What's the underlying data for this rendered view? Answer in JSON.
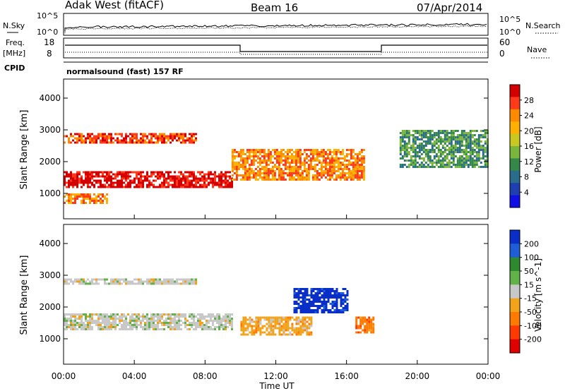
{
  "header": {
    "site": "Adak West (fitACF)",
    "beam": "Beam 16",
    "date": "07/Apr/2014"
  },
  "labels": {
    "nsky": "N.Sky",
    "nsearch": "N.Search",
    "freq_line1": "Freq.",
    "freq_line2": "[MHz]",
    "nave": "Nave",
    "cpid": "CPID",
    "cpid_text": "normalsound (fast) 157 RF",
    "time_axis": "Time UT"
  },
  "noise_axis": {
    "left_top": "10^5",
    "left_bottom": "10^0",
    "right_top": "10^5",
    "right_bottom": "10^0"
  },
  "freq_axis": {
    "left_ticks": [
      "18",
      "8"
    ],
    "right_ticks": [
      "60",
      "0"
    ]
  },
  "time_ticks": [
    "00:00",
    "04:00",
    "08:00",
    "12:00",
    "16:00",
    "20:00",
    "00:00"
  ],
  "chart_data": [
    {
      "type": "heatmap",
      "name": "power",
      "ylabel": "Slant Range [km]",
      "xlabel": "Time UT",
      "xlim_hours": [
        0,
        24
      ],
      "ylim": [
        200,
        4600
      ],
      "yticks": [
        1000,
        2000,
        3000,
        4000
      ],
      "colorbar": {
        "label": "Power [dB]",
        "ticks": [
          "28",
          "24",
          "20",
          "16",
          "12",
          "8",
          "4"
        ],
        "colors": [
          "#d40000",
          "#ff3a1a",
          "#ff8a00",
          "#ffb000",
          "#c8c820",
          "#7ab63c",
          "#33884a",
          "#2a6c8c",
          "#1f3fb0",
          "#1010e6"
        ]
      },
      "bands": [
        {
          "range_km": [
            1200,
            1700
          ],
          "hours": [
            0,
            9.5
          ],
          "peak_db": 28
        },
        {
          "range_km": [
            2600,
            2900
          ],
          "hours": [
            0,
            7.5
          ],
          "peak_db": 24
        },
        {
          "range_km": [
            700,
            1000
          ],
          "hours": [
            0,
            2.5
          ],
          "peak_db": 22
        },
        {
          "range_km": [
            1400,
            2400
          ],
          "hours": [
            9.5,
            17
          ],
          "peak_db": 22
        },
        {
          "range_km": [
            1800,
            3000
          ],
          "hours": [
            19,
            24
          ],
          "peak_db": 10
        }
      ]
    },
    {
      "type": "heatmap",
      "name": "velocity",
      "ylabel": "Slant Range [km]",
      "xlabel": "Time UT",
      "xlim_hours": [
        0,
        24
      ],
      "ylim": [
        200,
        4600
      ],
      "yticks": [
        1000,
        2000,
        3000,
        4000
      ],
      "colorbar": {
        "label": "Velocity [m s^-1]",
        "ticks": [
          "200",
          "100",
          "50",
          "15",
          "-15",
          "-50",
          "-100",
          "-200"
        ],
        "colors": [
          "#0a2fc8",
          "#1e5fd8",
          "#2f8a2f",
          "#62b24a",
          "#c8c8c8",
          "#f2a31a",
          "#ff7a00",
          "#ff3a00",
          "#e00000"
        ]
      },
      "bands": [
        {
          "range_km": [
            1300,
            1800
          ],
          "hours": [
            0,
            9.5
          ],
          "velocity": 0
        },
        {
          "range_km": [
            2700,
            2900
          ],
          "hours": [
            0,
            7.5
          ],
          "velocity": 0
        },
        {
          "range_km": [
            1800,
            2600
          ],
          "hours": [
            13,
            16
          ],
          "velocity": 200
        },
        {
          "range_km": [
            1100,
            1700
          ],
          "hours": [
            10,
            14
          ],
          "velocity": -50
        },
        {
          "range_km": [
            1200,
            1700
          ],
          "hours": [
            16.5,
            17.5
          ],
          "velocity": -100
        }
      ]
    }
  ]
}
